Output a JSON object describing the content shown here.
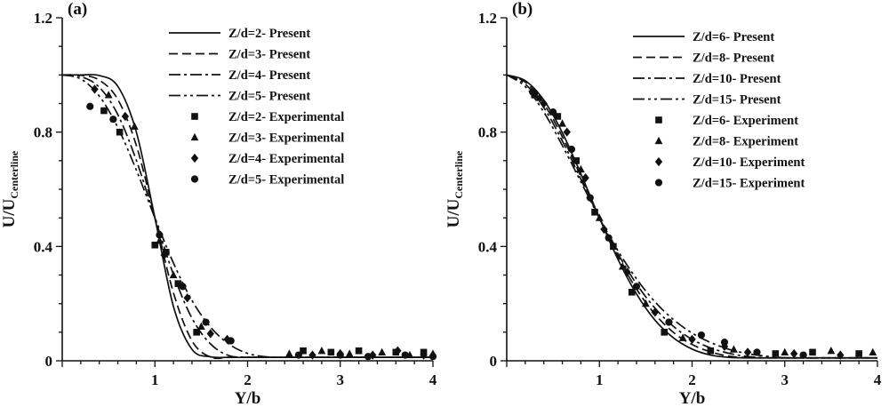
{
  "figure": {
    "background": "#ffffff",
    "ink": "#111111"
  },
  "chart_data": [
    {
      "id": "a",
      "type": "line",
      "panel_label": "(a)",
      "xlabel": "Y/b",
      "ylabel_main": "U/U",
      "ylabel_sub": "Centerline",
      "xlim": [
        0,
        4
      ],
      "ylim": [
        0,
        1.2
      ],
      "grid": false,
      "legend_position": "upper-right-inside",
      "xticks": {
        "major": [
          0,
          1,
          2,
          3,
          4
        ],
        "labels": [
          "",
          "1",
          "2",
          "3",
          "4"
        ],
        "minor_step": 0.2
      },
      "yticks": {
        "major": [
          0,
          0.4,
          0.8,
          1.2
        ],
        "labels": [
          "0",
          "0.4",
          "0.8",
          "1.2"
        ],
        "minor_step": 0.1
      },
      "series": [
        {
          "name": "Z/d=2- Present",
          "kind": "line",
          "line_style": "solid",
          "x_start": 0,
          "x_step": 0.2,
          "y": [
            1.0,
            1.0,
            0.998,
            0.96,
            0.8,
            0.5,
            0.19,
            0.04,
            0.014,
            0.012,
            0.012,
            0.012,
            0.012,
            0.012,
            0.012,
            0.012,
            0.012,
            0.012,
            0.012,
            0.012,
            0.012
          ]
        },
        {
          "name": "Z/d=3- Present",
          "kind": "line",
          "line_style": "dashed",
          "x_start": 0,
          "x_step": 0.2,
          "y": [
            1.0,
            0.999,
            0.982,
            0.914,
            0.753,
            0.5,
            0.238,
            0.07,
            0.013,
            0.012,
            0.012,
            0.012,
            0.012,
            0.012,
            0.012,
            0.012,
            0.012,
            0.012,
            0.012,
            0.012,
            0.012
          ]
        },
        {
          "name": "Z/d=4- Present",
          "kind": "line",
          "line_style": "dashdot",
          "x_start": 0,
          "x_step": 0.2,
          "y": [
            1.0,
            0.994,
            0.957,
            0.861,
            0.701,
            0.5,
            0.302,
            0.149,
            0.059,
            0.018,
            0.013,
            0.012,
            0.012,
            0.012,
            0.012,
            0.012,
            0.012,
            0.012,
            0.012,
            0.012,
            0.012
          ]
        },
        {
          "name": "Z/d=5- Present",
          "kind": "line",
          "line_style": "dashdotdot",
          "x_start": 0,
          "x_step": 0.2,
          "y": [
            1.0,
            0.986,
            0.926,
            0.816,
            0.667,
            0.5,
            0.342,
            0.211,
            0.118,
            0.058,
            0.026,
            0.014,
            0.012,
            0.012,
            0.012,
            0.012,
            0.012,
            0.012,
            0.012,
            0.012,
            0.012
          ]
        },
        {
          "name": "Z/d=2- Experimental",
          "kind": "scatter",
          "marker": "square",
          "points": [
            [
              0.45,
              0.875
            ],
            [
              0.62,
              0.8
            ],
            [
              1.0,
              0.405
            ],
            [
              1.12,
              0.38
            ],
            [
              1.25,
              0.27
            ],
            [
              1.45,
              0.1
            ],
            [
              2.6,
              0.035
            ],
            [
              2.9,
              0.03
            ],
            [
              3.2,
              0.035
            ],
            [
              3.6,
              0.03
            ],
            [
              3.9,
              0.03
            ]
          ]
        },
        {
          "name": "Z/d=3- Experimental",
          "kind": "scatter",
          "marker": "triangle",
          "points": [
            [
              0.5,
              0.93
            ],
            [
              0.78,
              0.82
            ],
            [
              1.05,
              0.42
            ],
            [
              1.2,
              0.3
            ],
            [
              1.5,
              0.12
            ],
            [
              2.45,
              0.025
            ],
            [
              2.8,
              0.035
            ],
            [
              3.1,
              0.025
            ],
            [
              3.45,
              0.03
            ],
            [
              3.75,
              0.02
            ],
            [
              4.0,
              0.025
            ]
          ]
        },
        {
          "name": "Z/d=4- Experimental",
          "kind": "scatter",
          "marker": "diamond",
          "points": [
            [
              0.35,
              0.95
            ],
            [
              0.68,
              0.855
            ],
            [
              1.1,
              0.37
            ],
            [
              1.35,
              0.22
            ],
            [
              1.6,
              0.095
            ],
            [
              1.78,
              0.075
            ],
            [
              2.7,
              0.02
            ],
            [
              3.0,
              0.025
            ],
            [
              3.35,
              0.02
            ],
            [
              3.62,
              0.035
            ],
            [
              3.9,
              0.02
            ]
          ]
        },
        {
          "name": "Z/d=5- Experimental",
          "kind": "scatter",
          "marker": "circle",
          "points": [
            [
              0.3,
              0.89
            ],
            [
              0.55,
              0.845
            ],
            [
              1.05,
              0.44
            ],
            [
              1.3,
              0.26
            ],
            [
              1.55,
              0.135
            ],
            [
              1.82,
              0.07
            ],
            [
              2.55,
              0.02
            ],
            [
              3.0,
              0.02
            ],
            [
              3.3,
              0.015
            ],
            [
              3.7,
              0.02
            ],
            [
              4.0,
              0.015
            ]
          ]
        }
      ]
    },
    {
      "id": "b",
      "type": "line",
      "panel_label": "(b)",
      "xlabel": "Y/b",
      "ylabel_main": "U/U",
      "ylabel_sub": "Centerline",
      "xlim": [
        0,
        4
      ],
      "ylim": [
        0,
        1.2
      ],
      "grid": false,
      "legend_position": "upper-right-inside",
      "xticks": {
        "major": [
          0,
          1,
          2,
          3,
          4
        ],
        "labels": [
          "",
          "1",
          "2",
          "3",
          "4"
        ],
        "minor_step": 0.2
      },
      "yticks": {
        "major": [
          0,
          0.4,
          0.8,
          1.2
        ],
        "labels": [
          "0",
          "0.4",
          "0.8",
          "1.2"
        ],
        "minor_step": 0.1
      },
      "series": [
        {
          "name": "Z/d=6- Present",
          "kind": "line",
          "line_style": "solid",
          "x_start": 0,
          "x_step": 0.2,
          "y": [
            1.0,
            0.98,
            0.912,
            0.798,
            0.654,
            0.5,
            0.355,
            0.234,
            0.142,
            0.08,
            0.041,
            0.02,
            0.012,
            0.01,
            0.01,
            0.01,
            0.01,
            0.01,
            0.01,
            0.01,
            0.01
          ]
        },
        {
          "name": "Z/d=8- Present",
          "kind": "line",
          "line_style": "dashed",
          "x_start": 0,
          "x_step": 0.2,
          "y": [
            1.0,
            0.975,
            0.899,
            0.784,
            0.645,
            0.5,
            0.365,
            0.251,
            0.163,
            0.099,
            0.057,
            0.031,
            0.016,
            0.011,
            0.01,
            0.01,
            0.01,
            0.01,
            0.01,
            0.01,
            0.01
          ]
        },
        {
          "name": "Z/d=10- Present",
          "kind": "line",
          "line_style": "dashdot",
          "x_start": 0,
          "x_step": 0.2,
          "y": [
            1.0,
            0.968,
            0.886,
            0.769,
            0.635,
            0.5,
            0.375,
            0.269,
            0.184,
            0.12,
            0.075,
            0.045,
            0.026,
            0.015,
            0.011,
            0.01,
            0.01,
            0.01,
            0.01,
            0.01,
            0.01
          ]
        },
        {
          "name": "Z/d=15- Present",
          "kind": "line",
          "line_style": "dashdotdot",
          "x_start": 0,
          "x_step": 0.2,
          "y": [
            1.0,
            0.959,
            0.87,
            0.753,
            0.626,
            0.5,
            0.385,
            0.287,
            0.206,
            0.144,
            0.097,
            0.064,
            0.04,
            0.025,
            0.016,
            0.011,
            0.01,
            0.01,
            0.01,
            0.01,
            0.01
          ]
        },
        {
          "name": "Z/d=6- Experiment",
          "kind": "scatter",
          "marker": "square",
          "points": [
            [
              0.3,
              0.93
            ],
            [
              0.55,
              0.855
            ],
            [
              0.75,
              0.7
            ],
            [
              0.95,
              0.52
            ],
            [
              1.15,
              0.4
            ],
            [
              1.35,
              0.24
            ],
            [
              1.7,
              0.1
            ],
            [
              2.2,
              0.035
            ],
            [
              2.9,
              0.025
            ],
            [
              3.3,
              0.03
            ],
            [
              3.8,
              0.025
            ]
          ]
        },
        {
          "name": "Z/d=8- Experiment",
          "kind": "scatter",
          "marker": "triangle",
          "points": [
            [
              0.35,
              0.92
            ],
            [
              0.6,
              0.83
            ],
            [
              0.8,
              0.67
            ],
            [
              1.0,
              0.5
            ],
            [
              1.25,
              0.33
            ],
            [
              1.5,
              0.2
            ],
            [
              1.9,
              0.08
            ],
            [
              2.45,
              0.04
            ],
            [
              3.0,
              0.03
            ],
            [
              3.5,
              0.035
            ],
            [
              3.95,
              0.03
            ]
          ]
        },
        {
          "name": "Z/d=10- Experiment",
          "kind": "scatter",
          "marker": "diamond",
          "points": [
            [
              0.4,
              0.9
            ],
            [
              0.65,
              0.8
            ],
            [
              0.85,
              0.64
            ],
            [
              1.05,
              0.46
            ],
            [
              1.3,
              0.31
            ],
            [
              1.6,
              0.17
            ],
            [
              2.0,
              0.075
            ],
            [
              2.35,
              0.05
            ],
            [
              2.6,
              0.03
            ],
            [
              3.1,
              0.025
            ],
            [
              3.6,
              0.02
            ]
          ]
        },
        {
          "name": "Z/d=15- Experiment",
          "kind": "scatter",
          "marker": "circle",
          "points": [
            [
              0.28,
              0.94
            ],
            [
              0.5,
              0.87
            ],
            [
              0.7,
              0.74
            ],
            [
              0.9,
              0.57
            ],
            [
              1.1,
              0.43
            ],
            [
              1.4,
              0.26
            ],
            [
              1.75,
              0.135
            ],
            [
              2.1,
              0.09
            ],
            [
              2.35,
              0.065
            ],
            [
              2.7,
              0.03
            ],
            [
              3.2,
              0.02
            ]
          ]
        }
      ]
    }
  ]
}
